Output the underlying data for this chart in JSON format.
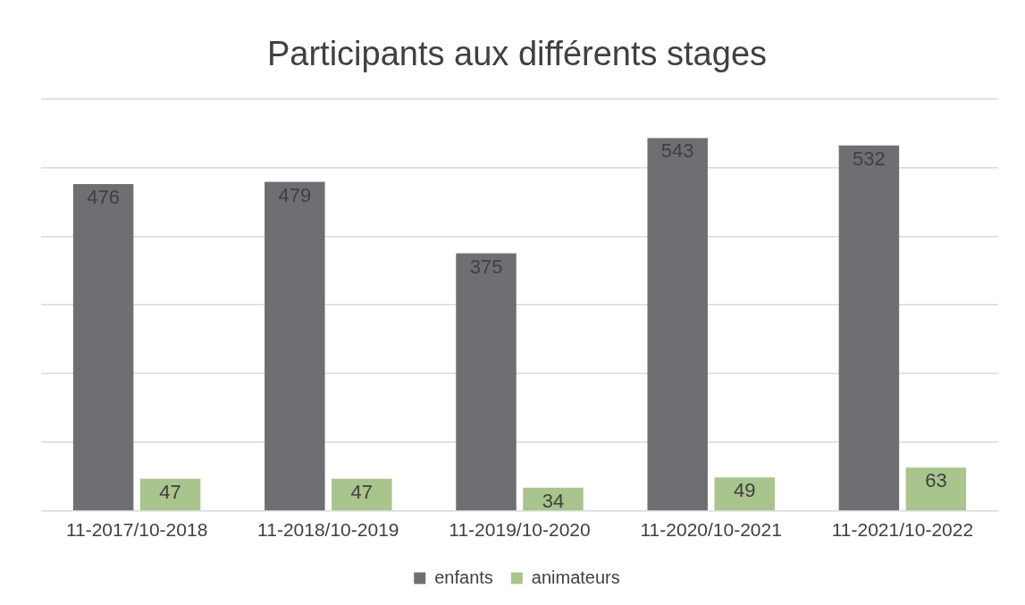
{
  "chart_data": {
    "type": "bar",
    "title": "Participants aux différents stages",
    "categories": [
      "11-2017/10-2018",
      "11-2018/10-2019",
      "11-2019/10-2020",
      "11-2020/10-2021",
      "11-2021/10-2022"
    ],
    "series": [
      {
        "name": "enfants",
        "color": "#6e6e73",
        "values": [
          476,
          479,
          375,
          543,
          532
        ]
      },
      {
        "name": "animateurs",
        "color": "#a9c48c",
        "values": [
          47,
          47,
          34,
          49,
          63
        ]
      }
    ],
    "ylim": [
      0,
      600
    ],
    "yticks": [
      {
        "value": 0,
        "label": null
      },
      {
        "value": 100,
        "label": null
      },
      {
        "value": 200,
        "label": null
      },
      {
        "value": 300,
        "label": null
      },
      {
        "value": 400,
        "label": null
      },
      {
        "value": 500,
        "label": null
      },
      {
        "value": 600,
        "label": null
      }
    ],
    "grid": "y",
    "legend": "bottom",
    "data_labels": true
  }
}
